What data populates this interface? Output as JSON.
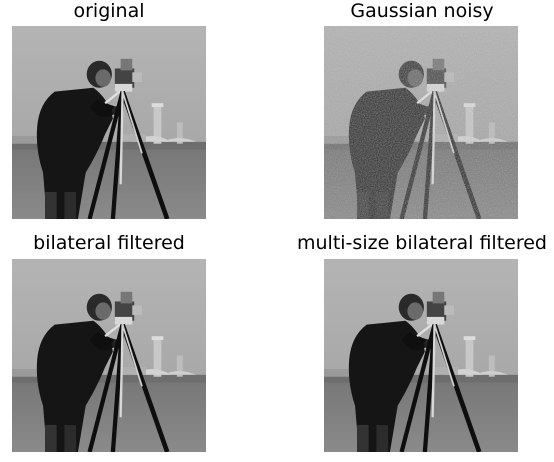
{
  "panels": [
    {
      "id": "original",
      "title": "original",
      "noise": false
    },
    {
      "id": "gaussian-noisy",
      "title": "Gaussian noisy",
      "noise": true
    },
    {
      "id": "bilateral-filtered",
      "title": "bilateral filtered",
      "noise": false
    },
    {
      "id": "multi-size-bilateral-filtered",
      "title": "multi-size bilateral filtered",
      "noise": false
    }
  ],
  "colors": {
    "sky": "#a8a8a8",
    "ground": "#8a8a8a",
    "coat": "#151515",
    "buildings": "#c8c8c8"
  }
}
